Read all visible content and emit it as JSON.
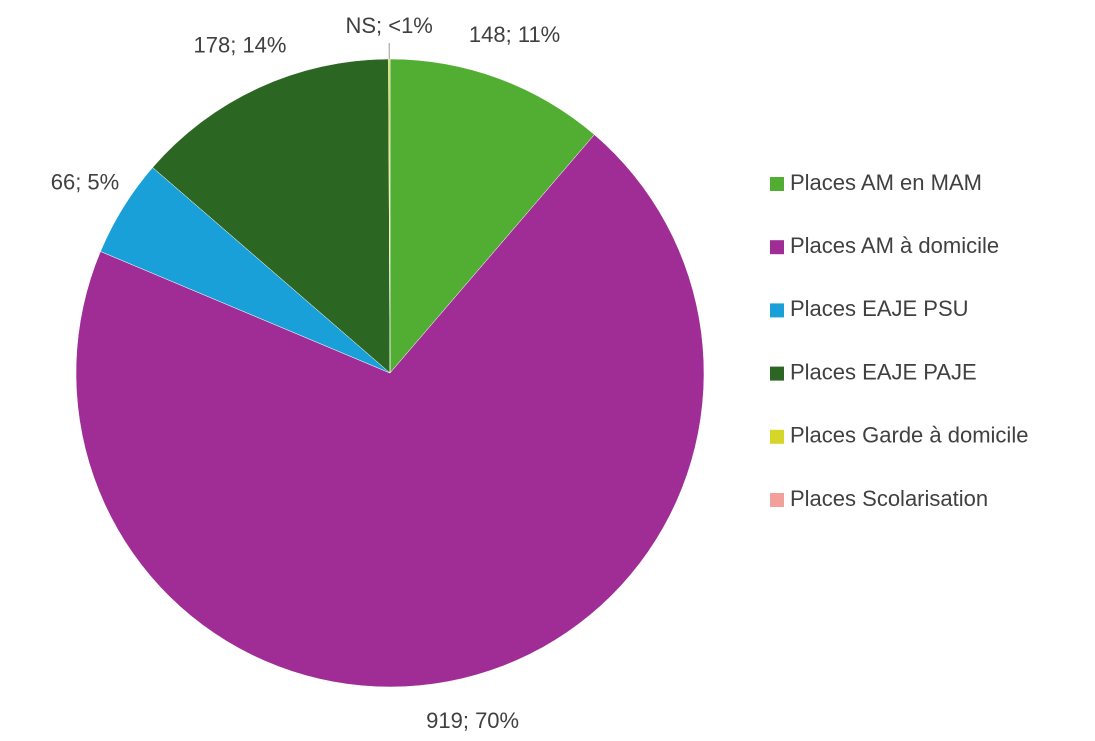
{
  "chart_data": {
    "type": "pie",
    "categories": [
      "Places AM en MAM",
      "Places AM à domicile",
      "Places EAJE PSU",
      "Places EAJE PAJE",
      "Places Garde à domicile",
      "Places Scolarisation"
    ],
    "values": [
      148,
      919,
      66,
      178,
      1,
      0
    ],
    "value_labels": [
      "148; 11%",
      "919; 70%",
      "66; 5%",
      "178; 14%",
      "NS; <1%",
      null
    ],
    "colors": [
      "#52ad33",
      "#a02d96",
      "#1aa0d8",
      "#2c6623",
      "#d6d62a",
      "#f4a09a"
    ],
    "legend": "right"
  }
}
